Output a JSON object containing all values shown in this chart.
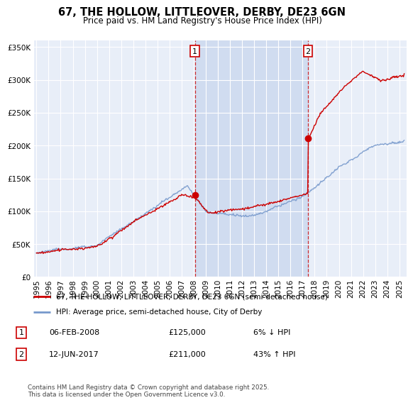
{
  "title": "67, THE HOLLOW, LITTLEOVER, DERBY, DE23 6GN",
  "subtitle": "Price paid vs. HM Land Registry's House Price Index (HPI)",
  "ylim": [
    0,
    360000
  ],
  "yticks": [
    0,
    50000,
    100000,
    150000,
    200000,
    250000,
    300000,
    350000
  ],
  "ytick_labels": [
    "£0",
    "£50K",
    "£100K",
    "£150K",
    "£200K",
    "£250K",
    "£300K",
    "£350K"
  ],
  "xlim_start": 1994.8,
  "xlim_end": 2025.6,
  "plot_bg_color": "#e8eef8",
  "grid_color": "#ffffff",
  "sale1_x": 2008.09,
  "sale1_y": 125000,
  "sale1_label": "1",
  "sale2_x": 2017.45,
  "sale2_y": 211000,
  "sale2_label": "2",
  "red_line_color": "#cc0000",
  "blue_line_color": "#7799cc",
  "highlight_bg_color": "#d0dcf0",
  "legend_line1": "67, THE HOLLOW, LITTLEOVER, DERBY, DE23 6GN (semi-detached house)",
  "legend_line2": "HPI: Average price, semi-detached house, City of Derby",
  "table_row1": [
    "1",
    "06-FEB-2008",
    "£125,000",
    "6% ↓ HPI"
  ],
  "table_row2": [
    "2",
    "12-JUN-2017",
    "£211,000",
    "43% ↑ HPI"
  ],
  "footnote": "Contains HM Land Registry data © Crown copyright and database right 2025.\nThis data is licensed under the Open Government Licence v3.0.",
  "title_fontsize": 10.5,
  "subtitle_fontsize": 8.5,
  "tick_fontsize": 7.5
}
